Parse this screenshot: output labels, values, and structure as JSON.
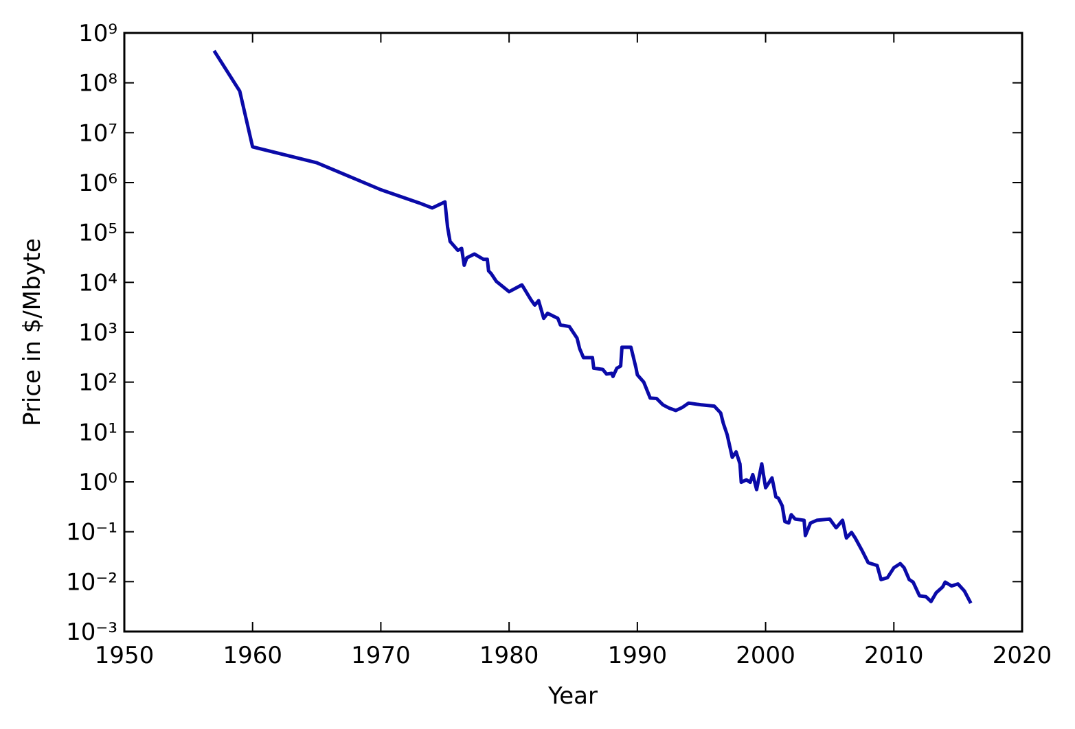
{
  "chart_data": {
    "type": "line",
    "xlabel": "Year",
    "ylabel": "Price in $/Mbyte",
    "ylog": true,
    "xlim": [
      1950,
      2020
    ],
    "xticks": [
      1950,
      1960,
      1970,
      1980,
      1990,
      2000,
      2010,
      2020
    ],
    "ylim": [
      0.001,
      1000000000
    ],
    "yticks": [
      {
        "value": 0.001,
        "label": "10⁻³"
      },
      {
        "value": 0.01,
        "label": "10⁻²"
      },
      {
        "value": 0.1,
        "label": "10⁻¹"
      },
      {
        "value": 1,
        "label": "10⁰"
      },
      {
        "value": 10,
        "label": "10¹"
      },
      {
        "value": 100,
        "label": "10²"
      },
      {
        "value": 1000,
        "label": "10³"
      },
      {
        "value": 10000,
        "label": "10⁴"
      },
      {
        "value": 100000,
        "label": "10⁵"
      },
      {
        "value": 1000000,
        "label": "10⁶"
      },
      {
        "value": 10000000,
        "label": "10⁷"
      },
      {
        "value": 100000000,
        "label": "10⁸"
      },
      {
        "value": 1000000000,
        "label": "10⁹"
      }
    ],
    "series": [
      {
        "color": "#0a0aa8",
        "x": [
          1957,
          1959,
          1960,
          1965,
          1970,
          1973,
          1974,
          1975,
          1975.2,
          1975.4,
          1976,
          1976.3,
          1976.5,
          1976.7,
          1977.3,
          1978,
          1978.3,
          1978.4,
          1978.6,
          1979,
          1980,
          1981,
          1981.7,
          1982,
          1982.3,
          1982.7,
          1983,
          1983.8,
          1984,
          1984.7,
          1985.3,
          1985.5,
          1985.8,
          1986.5,
          1986.6,
          1987.3,
          1987.6,
          1988,
          1988.1,
          1988.4,
          1988.7,
          1988.8,
          1989.5,
          1989.7,
          1989.9,
          1990,
          1990.5,
          1991,
          1991.5,
          1992,
          1992.5,
          1993,
          1993.5,
          1994,
          1995,
          1996,
          1996.5,
          1996.7,
          1997,
          1997.4,
          1997.7,
          1998,
          1998.1,
          1998.5,
          1998.8,
          1999,
          1999.3,
          1999.7,
          2000,
          2000.5,
          2000.8,
          2001,
          2001.3,
          2001.5,
          2001.8,
          2002,
          2002.3,
          2003,
          2003.1,
          2003.5,
          2004,
          2005,
          2005.5,
          2006,
          2006.3,
          2006.7,
          2007,
          2007.5,
          2008,
          2008.7,
          2009,
          2009.5,
          2010,
          2010.5,
          2010.8,
          2011.2,
          2011.5,
          2012,
          2012.5,
          2012.9,
          2013.3,
          2013.8,
          2014,
          2014.5,
          2015,
          2015.5,
          2016
        ],
        "values": [
          440000000,
          68000000,
          5200000,
          2500000,
          720000,
          390000,
          310000,
          410000,
          130000,
          66000,
          44000,
          48000,
          22000,
          31000,
          37000,
          29000,
          29000,
          17000,
          15000,
          10500,
          6500,
          8900,
          4500,
          3500,
          4300,
          1900,
          2400,
          1900,
          1400,
          1300,
          760,
          470,
          310,
          310,
          190,
          180,
          145,
          150,
          130,
          190,
          210,
          500,
          500,
          310,
          190,
          140,
          100,
          48,
          47,
          35,
          30,
          27,
          31,
          38,
          35,
          33,
          24,
          15,
          8.9,
          3.1,
          4,
          2.3,
          0.98,
          1.1,
          0.98,
          1.4,
          0.7,
          2.3,
          0.76,
          1.2,
          0.5,
          0.47,
          0.33,
          0.16,
          0.15,
          0.22,
          0.18,
          0.17,
          0.084,
          0.15,
          0.17,
          0.18,
          0.12,
          0.17,
          0.075,
          0.097,
          0.074,
          0.043,
          0.024,
          0.021,
          0.011,
          0.012,
          0.019,
          0.023,
          0.019,
          0.011,
          0.0098,
          0.0052,
          0.005,
          0.004,
          0.006,
          0.0078,
          0.0098,
          0.0082,
          0.009,
          0.0065,
          0.0037
        ]
      }
    ]
  }
}
